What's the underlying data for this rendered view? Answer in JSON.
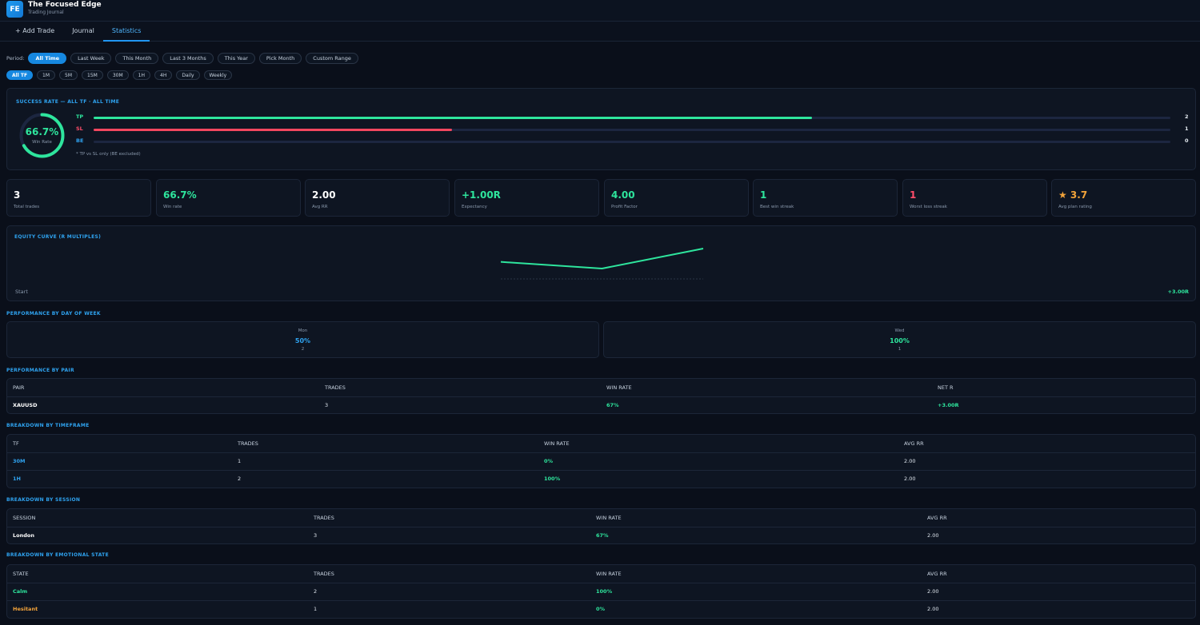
{
  "app": {
    "logo": "FE",
    "title": "The Focused Edge",
    "subtitle": "Trading Journal"
  },
  "tabs": [
    "+ Add Trade",
    "Journal",
    "Statistics"
  ],
  "period": {
    "label": "Period:",
    "options": [
      "All Time",
      "Last Week",
      "This Month",
      "Last 3 Months",
      "This Year",
      "Pick Month",
      "Custom Range"
    ],
    "selected": "All Time"
  },
  "timeframes": {
    "options": [
      "All TF",
      "1M",
      "5M",
      "15M",
      "30M",
      "1H",
      "4H",
      "Daily",
      "Weekly"
    ],
    "selected": "All TF"
  },
  "success": {
    "title": "SUCCESS RATE — ALL TF · ALL TIME",
    "win_rate_text": "66.7%",
    "win_rate_fraction": 0.667,
    "win_rate_label": "Win Rate",
    "bars": [
      {
        "label": "TP",
        "count": "2",
        "fraction": 0.667,
        "label_color": "#2ee59d",
        "fill_color": "#2ee59d"
      },
      {
        "label": "SL",
        "count": "1",
        "fraction": 0.333,
        "label_color": "#ff4d6a",
        "fill_color": "#f2475f"
      },
      {
        "label": "BE",
        "count": "0",
        "fraction": 0,
        "label_color": "#2fa3f0",
        "fill_color": "#2fa3f0"
      }
    ],
    "note": "* TP vs SL only (BE excluded)"
  },
  "kpis": [
    {
      "value": "3",
      "label": "Total trades",
      "color": "#ffffff"
    },
    {
      "value": "66.7%",
      "label": "Win rate",
      "color": "#2ee59d"
    },
    {
      "value": "2.00",
      "label": "Avg RR",
      "color": "#ffffff"
    },
    {
      "value": "+1.00R",
      "label": "Expectancy",
      "color": "#2ee59d"
    },
    {
      "value": "4.00",
      "label": "Profit Factor",
      "color": "#2ee59d"
    },
    {
      "value": "1",
      "label": "Best win streak",
      "color": "#2ee59d"
    },
    {
      "value": "1",
      "label": "Worst loss streak",
      "color": "#ff4d6a"
    },
    {
      "value": "★ 3.7",
      "label": "Avg plan rating",
      "color": "#f2a33a"
    }
  ],
  "equity": {
    "title": "EQUITY CURVE (R MULTIPLES)",
    "start_label": "Start",
    "end_label": "+3.00R",
    "points": [
      1.0,
      0.0,
      3.0
    ],
    "color": "#2ee59d"
  },
  "day_of_week": {
    "title": "PERFORMANCE BY DAY OF WEEK",
    "days": [
      {
        "day": "Mon",
        "rate": "50%",
        "count": "2",
        "color": "#2fa3f0"
      },
      {
        "day": "Wed",
        "rate": "100%",
        "count": "1",
        "color": "#2ee59d"
      }
    ]
  },
  "by_pair": {
    "title": "PERFORMANCE BY PAIR",
    "headers": [
      "PAIR",
      "TRADES",
      "WIN RATE",
      "NET R"
    ],
    "rows": [
      [
        "XAUUSD",
        "3",
        "67%",
        "+3.00R"
      ]
    ]
  },
  "by_timeframe": {
    "title": "BREAKDOWN BY TIMEFRAME",
    "headers": [
      "TF",
      "TRADES",
      "WIN RATE",
      "AVG RR"
    ],
    "rows": [
      [
        "30M",
        "1",
        "0%",
        "2.00"
      ],
      [
        "1H",
        "2",
        "100%",
        "2.00"
      ]
    ]
  },
  "by_session": {
    "title": "BREAKDOWN BY SESSION",
    "headers": [
      "SESSION",
      "TRADES",
      "WIN RATE",
      "AVG RR"
    ],
    "rows": [
      [
        "London",
        "3",
        "67%",
        "2.00"
      ]
    ]
  },
  "by_emotion": {
    "title": "BREAKDOWN BY EMOTIONAL STATE",
    "headers": [
      "STATE",
      "TRADES",
      "WIN RATE",
      "AVG RR"
    ],
    "rows": [
      [
        "Calm",
        "2",
        "100%",
        "2.00"
      ],
      [
        "Hesitant",
        "1",
        "0%",
        "2.00"
      ]
    ]
  }
}
